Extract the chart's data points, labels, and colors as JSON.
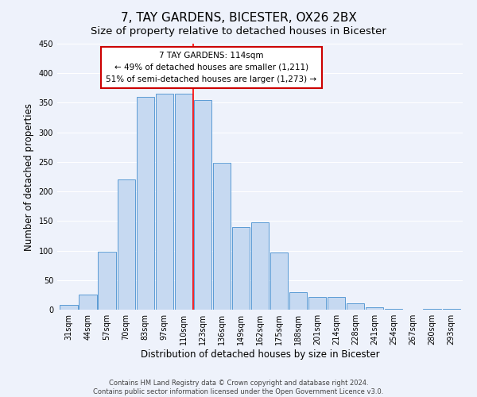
{
  "title": "7, TAY GARDENS, BICESTER, OX26 2BX",
  "subtitle": "Size of property relative to detached houses in Bicester",
  "xlabel": "Distribution of detached houses by size in Bicester",
  "ylabel": "Number of detached properties",
  "bar_labels": [
    "31sqm",
    "44sqm",
    "57sqm",
    "70sqm",
    "83sqm",
    "97sqm",
    "110sqm",
    "123sqm",
    "136sqm",
    "149sqm",
    "162sqm",
    "175sqm",
    "188sqm",
    "201sqm",
    "214sqm",
    "228sqm",
    "241sqm",
    "254sqm",
    "267sqm",
    "280sqm",
    "293sqm"
  ],
  "bar_values": [
    8,
    25,
    98,
    220,
    360,
    365,
    365,
    355,
    248,
    140,
    148,
    97,
    30,
    22,
    22,
    11,
    4,
    2,
    0,
    2,
    1
  ],
  "bar_color": "#c6d9f1",
  "bar_edge_color": "#5b9bd5",
  "vline_x_idx": 6,
  "vline_color": "#ff0000",
  "annotation_title": "7 TAY GARDENS: 114sqm",
  "annotation_line1": "← 49% of detached houses are smaller (1,211)",
  "annotation_line2": "51% of semi-detached houses are larger (1,273) →",
  "annotation_box_color": "#ffffff",
  "annotation_box_edge_color": "#cc0000",
  "ylim": [
    0,
    450
  ],
  "yticks": [
    0,
    50,
    100,
    150,
    200,
    250,
    300,
    350,
    400,
    450
  ],
  "footer1": "Contains HM Land Registry data © Crown copyright and database right 2024.",
  "footer2": "Contains public sector information licensed under the Open Government Licence v3.0.",
  "bg_color": "#eef2fb",
  "plot_bg_color": "#eef2fb",
  "title_fontsize": 11,
  "subtitle_fontsize": 9.5,
  "axis_label_fontsize": 8.5,
  "tick_fontsize": 7,
  "footer_fontsize": 6,
  "annotation_fontsize": 7.5
}
